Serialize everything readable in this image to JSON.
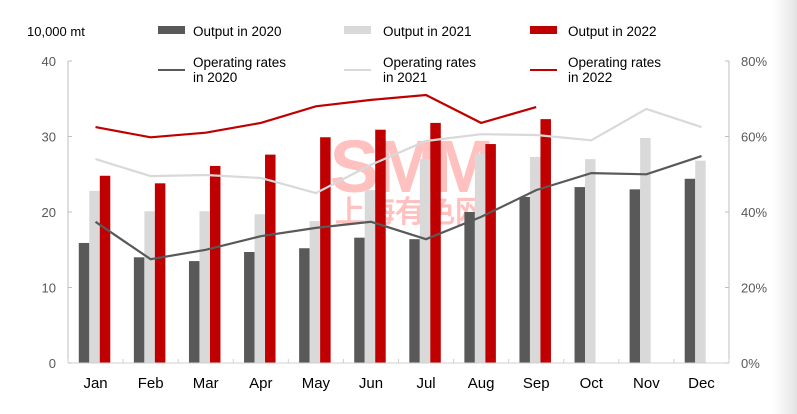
{
  "chart_data": {
    "type": "bar",
    "title": "",
    "unit_label": "10,000 mt",
    "categories": [
      "Jan",
      "Feb",
      "Mar",
      "Apr",
      "May",
      "Jun",
      "Jul",
      "Aug",
      "Sep",
      "Oct",
      "Nov",
      "Dec"
    ],
    "ylim": [
      0,
      40
    ],
    "yticks": [
      "0",
      "10",
      "20",
      "30",
      "40"
    ],
    "y2lim": [
      0,
      80
    ],
    "y2ticks": [
      "0%",
      "20%",
      "40%",
      "60%",
      "80%"
    ],
    "grid": false,
    "legend_position": "top",
    "series": [
      {
        "name": "Output in 2020",
        "type": "bar",
        "axis": "left",
        "color": "#595959",
        "values": [
          15.9,
          14.0,
          13.5,
          14.7,
          15.2,
          16.6,
          16.4,
          20.0,
          22.0,
          23.3,
          23.0,
          24.4
        ]
      },
      {
        "name": "Output in 2021",
        "type": "bar",
        "axis": "left",
        "color": "#d9d9d9",
        "values": [
          22.8,
          20.1,
          20.1,
          19.7,
          18.8,
          22.9,
          27.0,
          27.7,
          27.3,
          27.0,
          29.8,
          26.8
        ]
      },
      {
        "name": "Output in 2022",
        "type": "bar",
        "axis": "left",
        "color": "#c00000",
        "values": [
          24.8,
          23.8,
          26.1,
          27.6,
          29.9,
          30.9,
          31.8,
          29.0,
          32.3,
          null,
          null,
          null
        ]
      },
      {
        "name": "Operating rates in 2020",
        "type": "line",
        "axis": "right",
        "color": "#595959",
        "values": [
          37.4,
          27.5,
          30.0,
          33.6,
          35.8,
          37.4,
          32.8,
          38.7,
          45.8,
          50.3,
          50.0,
          54.8
        ]
      },
      {
        "name": "Operating rates in 2021",
        "type": "line",
        "axis": "right",
        "color": "#d9d9d9",
        "values": [
          54.0,
          49.5,
          49.8,
          49.0,
          45.0,
          52.5,
          58.8,
          60.6,
          60.4,
          59.0,
          67.3,
          62.5
        ]
      },
      {
        "name": "Operating rates in 2022",
        "type": "line",
        "axis": "right",
        "color": "#c00000",
        "values": [
          62.5,
          59.8,
          61.0,
          63.6,
          68.0,
          69.7,
          71.0,
          63.6,
          67.8,
          null,
          null,
          null
        ]
      }
    ],
    "legend": [
      {
        "line1": "Output in 2020",
        "line2": ""
      },
      {
        "line1": "Output in 2021",
        "line2": ""
      },
      {
        "line1": "Output in 2022",
        "line2": ""
      },
      {
        "line1": "Operating rates",
        "line2": "in 2020"
      },
      {
        "line1": "Operating rates",
        "line2": "in 2021"
      },
      {
        "line1": "Operating rates",
        "line2": "in 2022"
      }
    ]
  },
  "watermark": {
    "text": "SMM",
    "subtext": "上海有色网",
    "color": "#ff6b6b"
  }
}
